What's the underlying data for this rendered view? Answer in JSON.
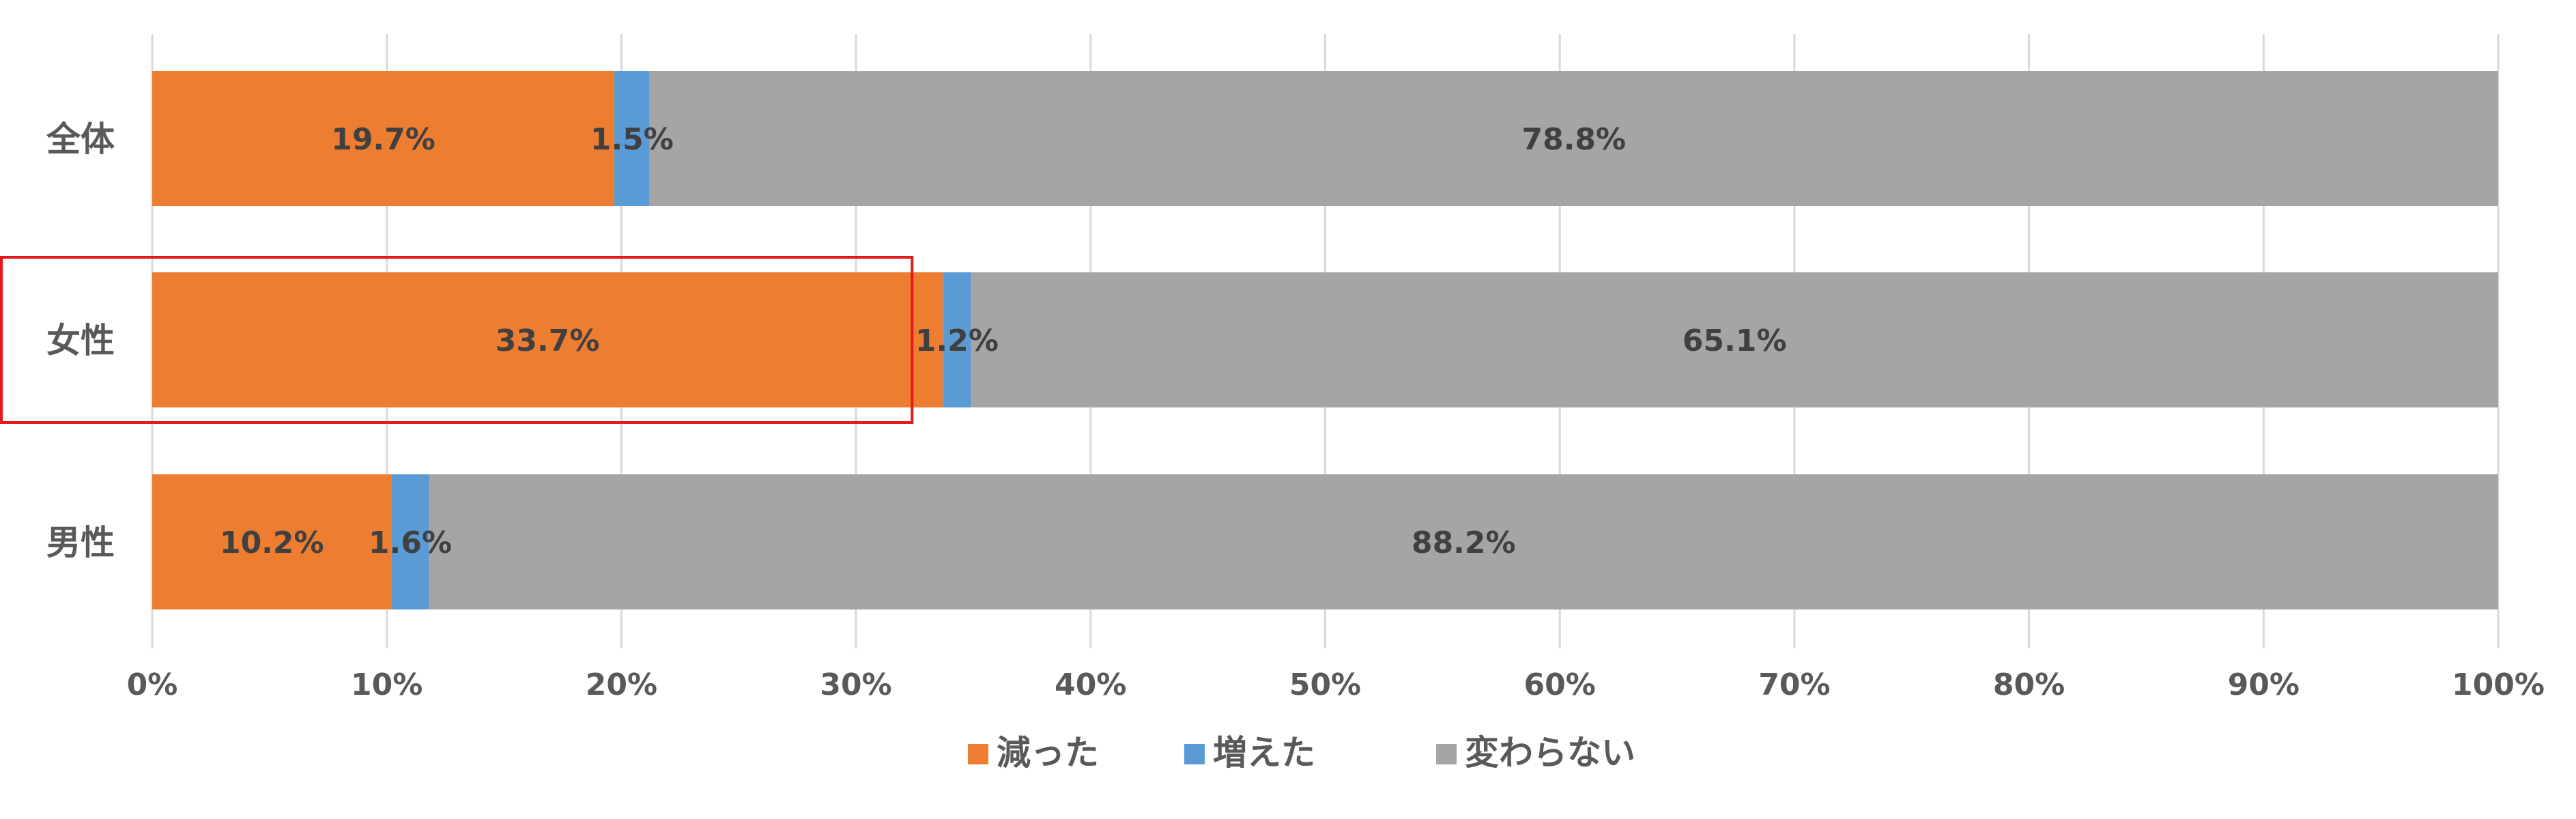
{
  "chart_data": {
    "type": "bar",
    "orientation": "horizontal",
    "stacked": "percent",
    "categories": [
      "全体",
      "女性",
      "男性"
    ],
    "series": [
      {
        "name": "減った",
        "values": [
          19.7,
          33.7,
          10.2
        ],
        "color": "#ED7D31"
      },
      {
        "name": "増えた",
        "values": [
          1.5,
          1.2,
          1.6
        ],
        "color": "#5B9BD5"
      },
      {
        "name": "変わらない",
        "values": [
          78.8,
          65.1,
          88.2
        ],
        "color": "#A5A5A5"
      }
    ],
    "data_labels": [
      [
        "19.7%",
        "33.7%",
        "10.2%"
      ],
      [
        "1.5%",
        "1.2%",
        "1.6%"
      ],
      [
        "78.8%",
        "65.1%",
        "88.2%"
      ]
    ],
    "x_ticks": [
      "0%",
      "10%",
      "20%",
      "30%",
      "40%",
      "50%",
      "60%",
      "70%",
      "80%",
      "90%",
      "100%"
    ],
    "xlim": [
      0,
      100
    ],
    "grid": true,
    "legend_position": "bottom",
    "highlight": {
      "category": "女性",
      "series": "減った",
      "color": "#E31A1C"
    }
  }
}
